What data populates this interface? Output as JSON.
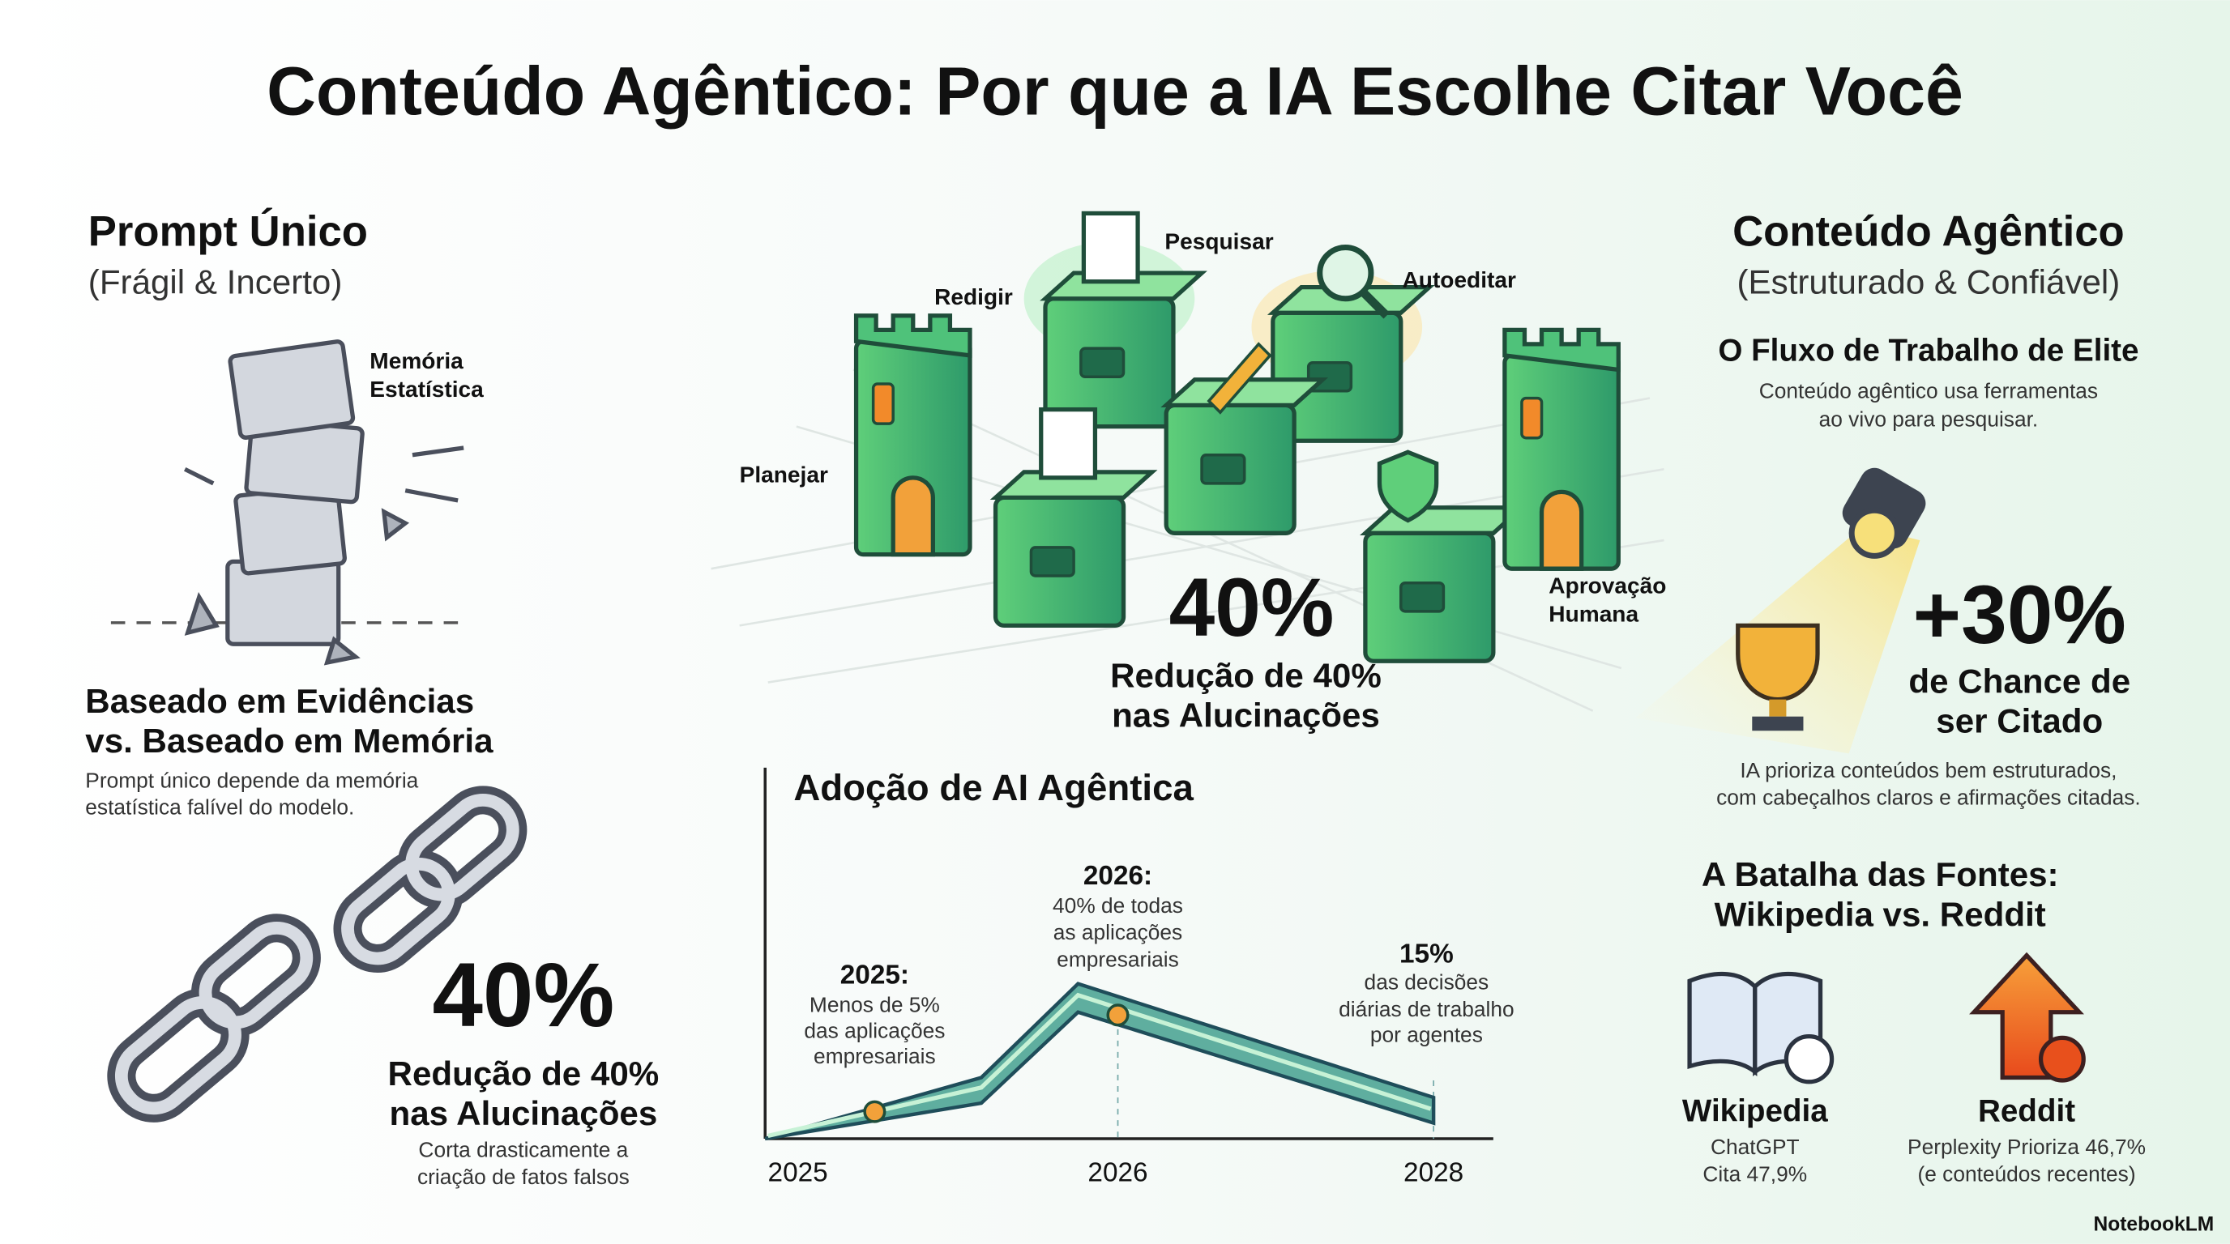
{
  "title": "Conteúdo Agêntico: Por que a IA Escolhe Citar Você",
  "left": {
    "heading": "Prompt Único",
    "subheading": "(Frágil & Incerto)",
    "illustration_label": [
      "Memória",
      "Estatística"
    ],
    "section_title": [
      "Baseado em Evidências",
      "vs. Baseado em Memória"
    ],
    "section_text": [
      "Prompt único depende da memória",
      "estatística falível do modelo."
    ],
    "stat": "40%",
    "stat_label": [
      "Redução de 40%",
      "nas Alucinações"
    ],
    "stat_text": [
      "Corta drasticamente a",
      "criação de fatos falsos"
    ]
  },
  "center": {
    "workflow_steps": [
      "Planejar",
      "Redigir",
      "Pesquisar",
      "Autoeditar",
      [
        "Aprovação",
        "Humana"
      ]
    ],
    "stat": "40%",
    "stat_label": [
      "Redução de 40%",
      "nas Alucinações"
    ],
    "chart": {
      "title": "Adoção de AI Agêntica",
      "x_labels": [
        "2025",
        "2026",
        "2028"
      ],
      "annotations": [
        {
          "heading": "2025:",
          "text": [
            "Menos de 5%",
            "das aplicações",
            "empresariais"
          ]
        },
        {
          "heading": "2026:",
          "text": [
            "40% de todas",
            "as aplicações",
            "empresariais"
          ]
        },
        {
          "heading": "15%",
          "text": [
            "das decisões",
            "diárias de trabalho",
            "por agentes"
          ]
        }
      ]
    }
  },
  "right": {
    "heading": "Conteúdo Agêntico",
    "subheading": "(Estruturado & Confiável)",
    "workflow_title": "O Fluxo de Trabalho de Elite",
    "workflow_text": [
      "Conteúdo agêntico usa ferramentas",
      "ao vivo para pesquisar."
    ],
    "stat": "+30%",
    "stat_label": [
      "de Chance de",
      "ser Citado"
    ],
    "stat_text": [
      "IA prioriza conteúdos bem estruturados,",
      "com cabeçalhos claros e afirmações citadas."
    ],
    "battle_title": [
      "A Batalha das Fontes:",
      "Wikipedia vs. Reddit"
    ],
    "sources": [
      {
        "name": "Wikipedia",
        "text": [
          "ChatGPT",
          "Cita 47,9%"
        ]
      },
      {
        "name": "Reddit",
        "text": [
          "Perplexity Prioriza 46,7%",
          "(e conteúdos recentes)"
        ]
      }
    ]
  },
  "footer": "NotebookLM"
}
